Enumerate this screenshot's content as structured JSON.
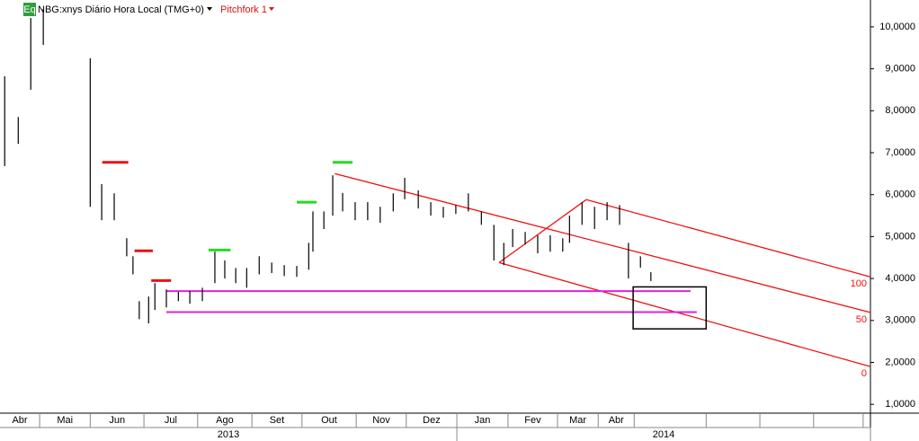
{
  "chart_data": {
    "type": "ohlc",
    "header": {
      "badge": "Eq",
      "symbol": "NBG:xnys Diário Hora Local (TMG+0)",
      "study": "Pitchfork 1"
    },
    "xlim": [
      0.24,
      16.93
    ],
    "ylim": [
      0.79,
      10.64
    ],
    "yticks": [
      {
        "value": 1,
        "label": "1,0000"
      },
      {
        "value": 2,
        "label": "2,0000"
      },
      {
        "value": 3,
        "label": "3,0000"
      },
      {
        "value": 4,
        "label": "4,0000"
      },
      {
        "value": 5,
        "label": "5,0000"
      },
      {
        "value": 6,
        "label": "6,0000"
      },
      {
        "value": 7,
        "label": "7,0000"
      },
      {
        "value": 8,
        "label": "8,0000"
      },
      {
        "value": 9,
        "label": "9,0000"
      },
      {
        "value": 10,
        "label": "10,0000"
      }
    ],
    "month_starts": [
      0,
      1,
      1.97,
      3,
      4.03,
      5.07,
      6.03,
      7.07,
      8.03,
      9,
      9.98,
      10.93,
      11.71,
      12.4,
      13.78,
      14.81,
      15.84,
      16.79
    ],
    "month_labels": [
      "Abr",
      "Mai",
      "Jun",
      "Jul",
      "Ago",
      "Set",
      "Out",
      "Nov",
      "Dez",
      "Jan",
      "Fev",
      "Mar",
      "Abr",
      null,
      null,
      null,
      null,
      null
    ],
    "years": [
      {
        "label": "2013",
        "start": 0.24,
        "end": 9
      },
      {
        "label": "2014",
        "start": 9,
        "end": 16.93
      }
    ],
    "bars": {
      "color": "#000000",
      "x": [
        0.33,
        0.59,
        0.83,
        1.07,
        1.97,
        2.19,
        2.43,
        2.67,
        2.79,
        2.91,
        3.09,
        3.21,
        3.43,
        3.66,
        3.88,
        4.12,
        4.36,
        4.55,
        4.76,
        4.97,
        5.21,
        5.45,
        5.69,
        5.93,
        6.16,
        6.24,
        6.45,
        6.62,
        6.81,
        7.05,
        7.29,
        7.53,
        7.78,
        8.0,
        8.26,
        8.5,
        8.74,
        8.98,
        9.22,
        9.47,
        9.71,
        9.9,
        10.07,
        10.31,
        10.55,
        10.79,
        11.03,
        11.16,
        11.4,
        11.64,
        11.88,
        12.12,
        12.29,
        12.52,
        12.72
      ],
      "high": [
        8.82,
        7.85,
        10.21,
        10.43,
        9.25,
        6.25,
        6.03,
        4.96,
        4.53,
        3.46,
        3.57,
        3.89,
        3.74,
        3.68,
        3.7,
        3.78,
        4.64,
        4.43,
        4.25,
        4.25,
        4.53,
        4.38,
        4.32,
        4.3,
        4.85,
        5.6,
        5.6,
        6.46,
        6.04,
        5.82,
        5.82,
        5.71,
        6.03,
        6.4,
        6.1,
        5.82,
        5.71,
        5.75,
        6.03,
        5.6,
        5.28,
        4.85,
        5.18,
        5.11,
        5.03,
        5.03,
        4.96,
        5.5,
        5.82,
        5.71,
        5.82,
        5.75,
        4.85,
        4.53,
        4.15
      ],
      "low": [
        6.68,
        7.21,
        8.5,
        9.57,
        5.71,
        5.39,
        5.39,
        4.53,
        4.1,
        3.03,
        2.93,
        3.25,
        3.31,
        3.46,
        3.4,
        3.46,
        3.89,
        4.0,
        3.89,
        3.78,
        4.1,
        4.13,
        4.06,
        4.04,
        4.21,
        4.64,
        5.18,
        5.5,
        5.6,
        5.39,
        5.39,
        5.33,
        5.6,
        5.89,
        5.67,
        5.5,
        5.45,
        5.54,
        5.6,
        5.28,
        4.43,
        4.32,
        4.75,
        4.81,
        4.6,
        4.64,
        4.64,
        4.85,
        5.28,
        5.18,
        5.39,
        5.28,
        4.0,
        4.26,
        3.94
      ]
    },
    "markers": [
      {
        "color": "#ee1111",
        "x": [
          2.2,
          2.7
        ],
        "value": 6.77
      },
      {
        "color": "#ee1111",
        "x": [
          2.82,
          3.17
        ],
        "value": 4.66
      },
      {
        "color": "#ee1111",
        "x": [
          3.14,
          3.52
        ],
        "value": 3.95
      },
      {
        "color": "#22dd22",
        "x": [
          4.24,
          4.66
        ],
        "value": 4.68
      },
      {
        "color": "#22dd22",
        "x": [
          5.93,
          6.31
        ],
        "value": 5.82
      },
      {
        "color": "#22dd22",
        "x": [
          6.62,
          7.0
        ],
        "value": 6.77
      }
    ],
    "pitchfork": {
      "color": "#ee1111",
      "handle": {
        "x": [
          9.81,
          11.48
        ],
        "y": [
          4.38,
          5.88
        ]
      },
      "lines": [
        {
          "label": "100",
          "x": [
            11.48,
            16.93
          ],
          "y": [
            5.88,
            4.04
          ]
        },
        {
          "label": "50",
          "x": [
            6.66,
            16.93
          ],
          "y": [
            6.5,
            3.19
          ]
        },
        {
          "label": "0",
          "x": [
            9.81,
            16.93
          ],
          "y": [
            4.38,
            1.9
          ]
        }
      ]
    },
    "hlines": [
      {
        "color": "#dd22dd",
        "x": [
          3.43,
          13.48
        ],
        "value": 3.7
      },
      {
        "color": "#dd22dd",
        "x": [
          3.43,
          13.6
        ],
        "value": 3.2
      }
    ],
    "box": {
      "x": [
        12.38,
        13.78
      ],
      "y": [
        2.8,
        3.8
      ]
    }
  }
}
